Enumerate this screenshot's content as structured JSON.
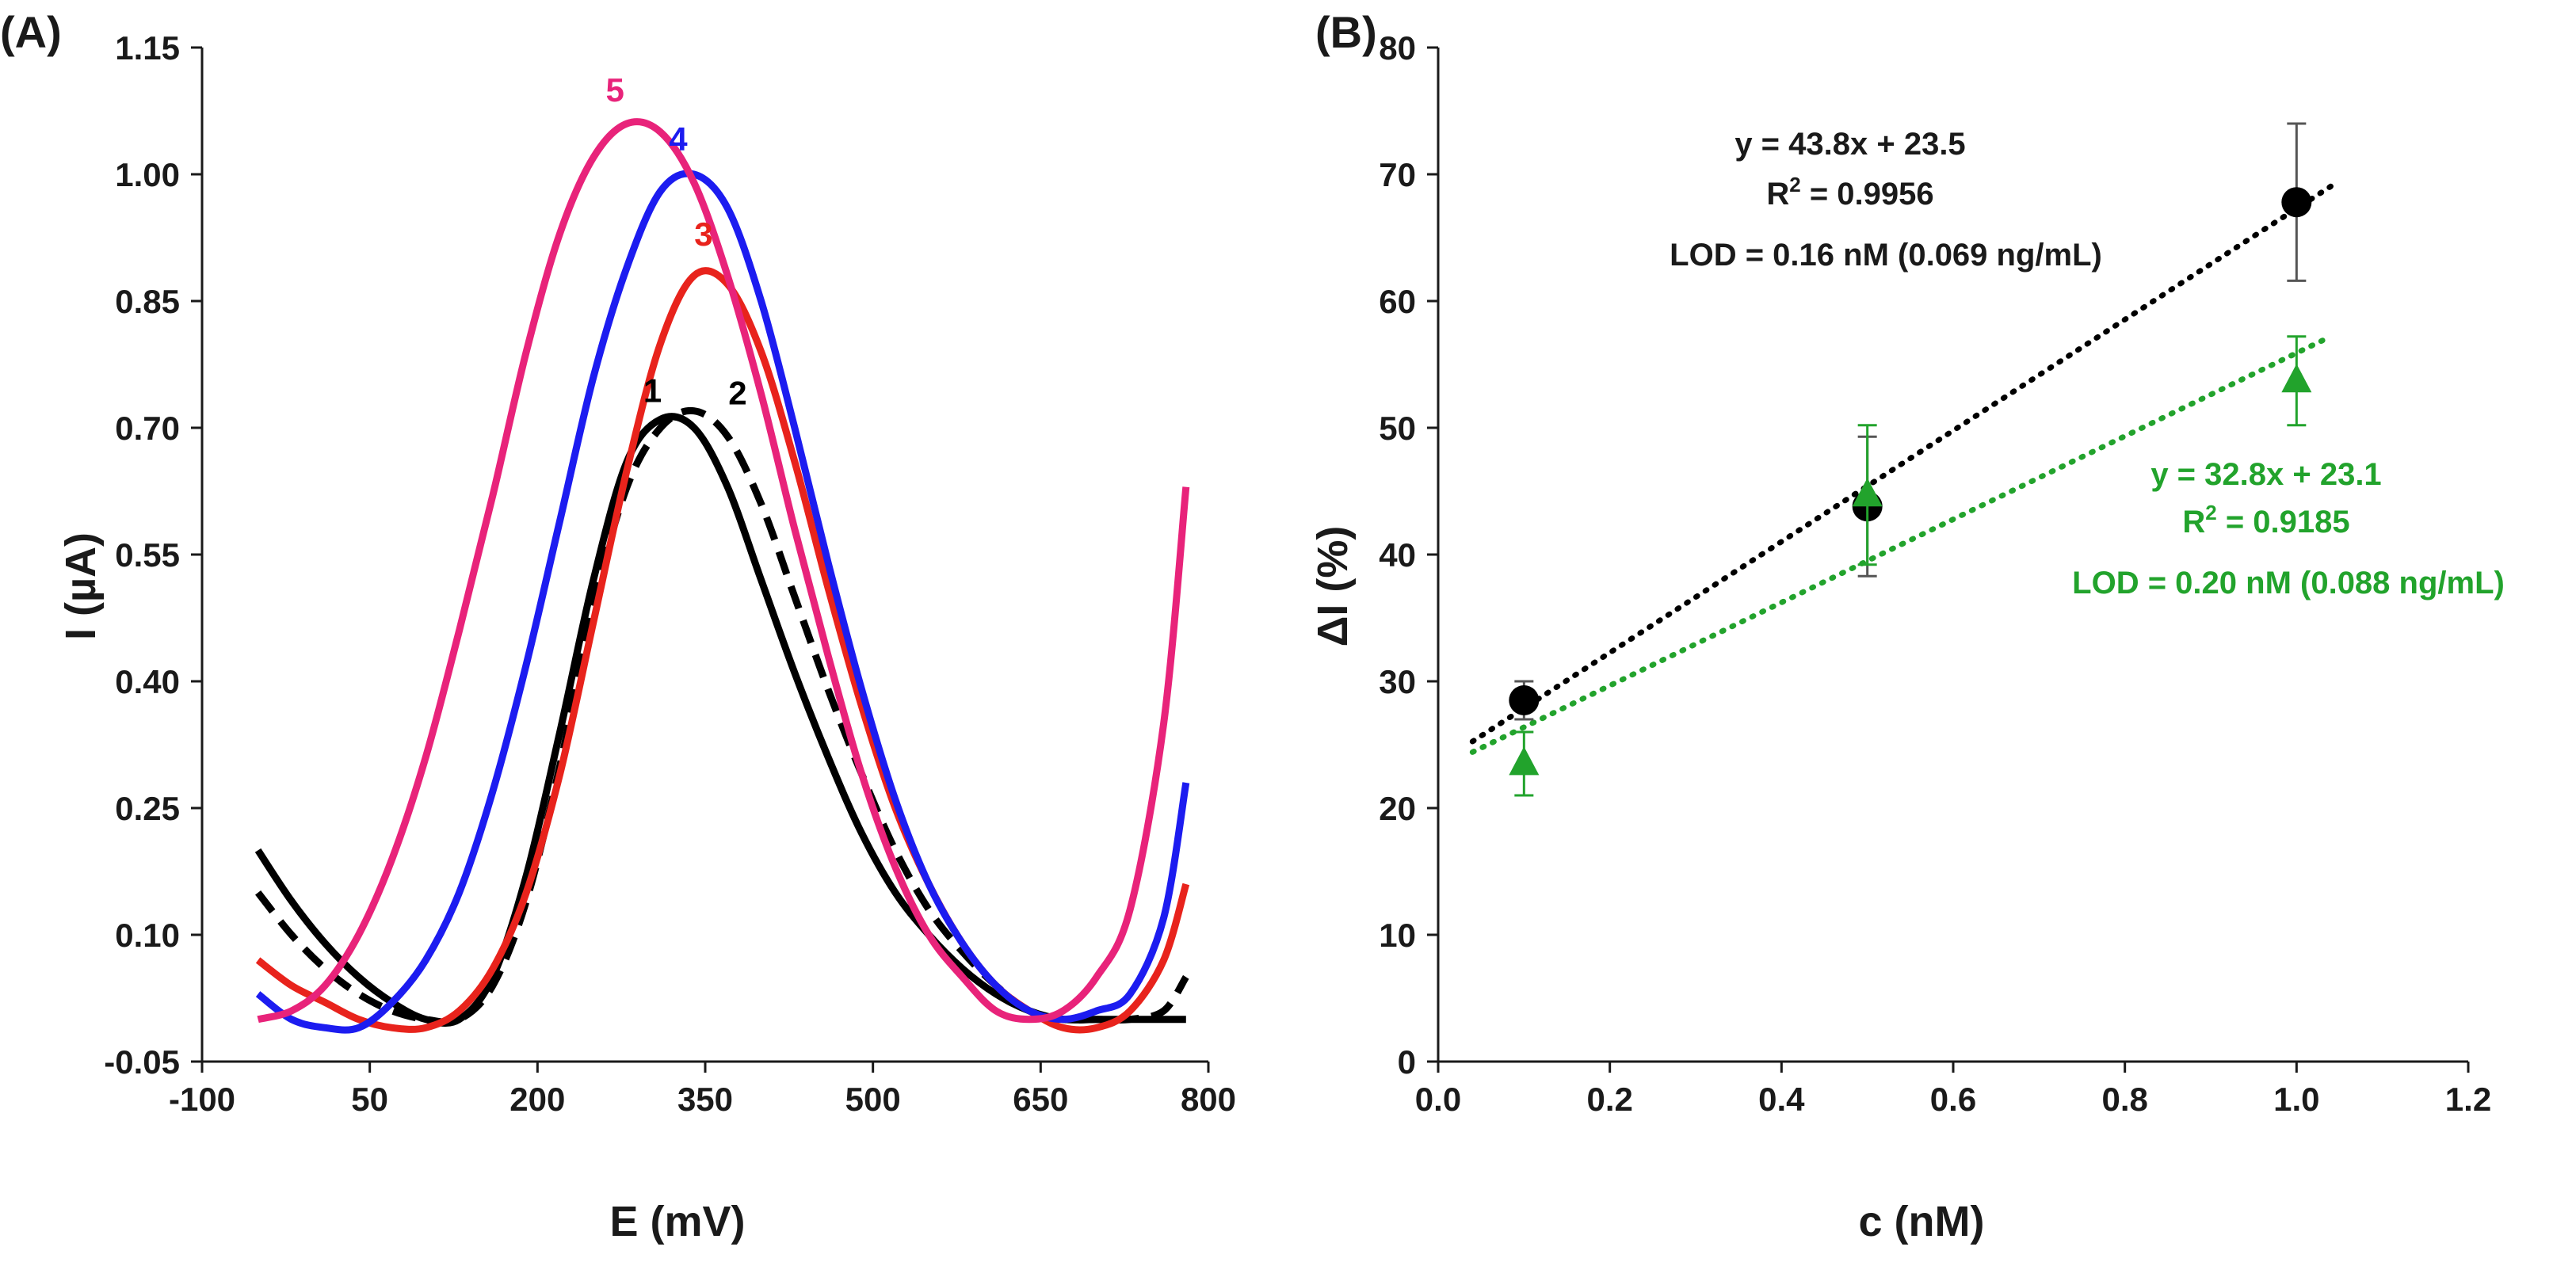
{
  "chart_data": [
    {
      "panel": "(A)",
      "type": "line",
      "xlabel": "E (mV)",
      "ylabel": "I (µA)",
      "xlim": [
        -100,
        800
      ],
      "ylim": [
        -0.05,
        1.15
      ],
      "xticks": [
        "-100",
        "50",
        "200",
        "350",
        "500",
        "650",
        "800"
      ],
      "yticks": [
        "-0.05",
        "0.10",
        "0.25",
        "0.40",
        "0.55",
        "0.70",
        "0.85",
        "1.00",
        "1.15"
      ],
      "series": [
        {
          "name": "1",
          "label": "1",
          "color": "#000000",
          "dash": false,
          "x": [
            -50,
            -20,
            10,
            40,
            70,
            100,
            130,
            160,
            190,
            220,
            250,
            280,
            310,
            340,
            370,
            400,
            430,
            460,
            490,
            520,
            550,
            580,
            610,
            640,
            670,
            700,
            730,
            760,
            780
          ],
          "y": [
            0.2,
            0.14,
            0.09,
            0.05,
            0.02,
            0.0,
            0.0,
            0.05,
            0.17,
            0.34,
            0.52,
            0.66,
            0.71,
            0.7,
            0.63,
            0.52,
            0.41,
            0.31,
            0.22,
            0.15,
            0.1,
            0.06,
            0.03,
            0.01,
            0.0,
            0.0,
            0.0,
            0.0,
            0.0
          ]
        },
        {
          "name": "2",
          "label": "2",
          "color": "#000000",
          "dash": true,
          "x": [
            -50,
            -20,
            10,
            40,
            70,
            100,
            130,
            160,
            190,
            220,
            250,
            280,
            310,
            340,
            370,
            400,
            430,
            460,
            490,
            520,
            550,
            580,
            610,
            640,
            670,
            700,
            730,
            760,
            780
          ],
          "y": [
            0.15,
            0.1,
            0.06,
            0.03,
            0.01,
            0.0,
            0.0,
            0.04,
            0.14,
            0.3,
            0.49,
            0.63,
            0.7,
            0.72,
            0.69,
            0.61,
            0.5,
            0.39,
            0.29,
            0.2,
            0.13,
            0.08,
            0.04,
            0.01,
            0.0,
            0.0,
            0.0,
            0.01,
            0.05
          ]
        },
        {
          "name": "3",
          "label": "3",
          "color": "#e8231c",
          "dash": false,
          "x": [
            -50,
            -20,
            10,
            40,
            70,
            100,
            130,
            160,
            190,
            220,
            250,
            280,
            310,
            340,
            370,
            400,
            430,
            460,
            490,
            520,
            550,
            580,
            610,
            640,
            670,
            700,
            730,
            760,
            780
          ],
          "y": [
            0.07,
            0.04,
            0.02,
            0.0,
            -0.01,
            -0.01,
            0.01,
            0.06,
            0.15,
            0.29,
            0.47,
            0.65,
            0.8,
            0.88,
            0.87,
            0.79,
            0.66,
            0.51,
            0.37,
            0.25,
            0.16,
            0.09,
            0.04,
            0.01,
            -0.01,
            -0.01,
            0.01,
            0.07,
            0.16
          ]
        },
        {
          "name": "4",
          "label": "4",
          "color": "#1c1cf0",
          "dash": false,
          "x": [
            -50,
            -20,
            10,
            40,
            70,
            100,
            130,
            160,
            190,
            220,
            250,
            280,
            310,
            340,
            370,
            400,
            430,
            460,
            490,
            520,
            550,
            580,
            610,
            640,
            670,
            700,
            730,
            760,
            780
          ],
          "y": [
            0.03,
            0.0,
            -0.01,
            -0.01,
            0.02,
            0.07,
            0.15,
            0.27,
            0.42,
            0.59,
            0.76,
            0.89,
            0.98,
            1.0,
            0.96,
            0.85,
            0.7,
            0.54,
            0.39,
            0.26,
            0.16,
            0.09,
            0.04,
            0.01,
            0.0,
            0.01,
            0.03,
            0.12,
            0.28
          ]
        },
        {
          "name": "5",
          "label": "5",
          "color": "#e8237a",
          "dash": false,
          "x": [
            -50,
            -20,
            10,
            40,
            70,
            100,
            130,
            160,
            190,
            220,
            250,
            280,
            310,
            340,
            370,
            400,
            430,
            460,
            490,
            520,
            550,
            580,
            610,
            640,
            670,
            700,
            730,
            760,
            780
          ],
          "y": [
            0.0,
            0.01,
            0.04,
            0.1,
            0.19,
            0.31,
            0.46,
            0.62,
            0.79,
            0.93,
            1.02,
            1.06,
            1.05,
            0.99,
            0.88,
            0.74,
            0.58,
            0.43,
            0.29,
            0.18,
            0.1,
            0.05,
            0.01,
            0.0,
            0.01,
            0.05,
            0.13,
            0.35,
            0.63
          ]
        }
      ]
    },
    {
      "panel": "(B)",
      "type": "scatter",
      "xlabel": "c (nM)",
      "ylabel": "ΔI (%)",
      "xlim": [
        0,
        1.2
      ],
      "ylim": [
        0,
        80
      ],
      "xticks": [
        "0.0",
        "0.2",
        "0.4",
        "0.6",
        "0.8",
        "1.0",
        "1.2"
      ],
      "yticks": [
        "0",
        "10",
        "20",
        "30",
        "40",
        "50",
        "60",
        "70",
        "80"
      ],
      "series": [
        {
          "name": "black",
          "marker": "circle",
          "color": "#000000",
          "x": [
            0.1,
            0.5,
            1.0
          ],
          "y": [
            28.5,
            43.8,
            67.8
          ],
          "err": [
            1.5,
            5.5,
            6.2
          ],
          "fit": {
            "slope": 43.8,
            "intercept": 23.5,
            "xrange": [
              0.04,
              1.04
            ]
          }
        },
        {
          "name": "green",
          "marker": "triangle",
          "color": "#22a32c",
          "x": [
            0.1,
            0.5,
            1.0
          ],
          "y": [
            23.5,
            44.7,
            53.7
          ],
          "err": [
            2.5,
            5.5,
            3.5
          ],
          "fit": {
            "slope": 32.8,
            "intercept": 23.1,
            "xrange": [
              0.04,
              1.04
            ]
          }
        }
      ],
      "annotations": {
        "black": {
          "equation": "y = 43.8x + 23.5",
          "r2_prefix": "R",
          "r2_sup": "2",
          "r2_value": " = 0.9956",
          "lod": "LOD = 0.16 nM (0.069 ng/mL)"
        },
        "green": {
          "equation": "y = 32.8x + 23.1",
          "r2_prefix": "R",
          "r2_sup": "2",
          "r2_value": " = 0.9185",
          "lod": "LOD = 0.20 nM (0.088 ng/mL)"
        }
      }
    }
  ],
  "colors": {
    "axis": "#1a1a1a",
    "black": "#000000",
    "green": "#22a32c",
    "red": "#e8231c",
    "blue": "#1c1cf0",
    "pink": "#e8237a"
  }
}
